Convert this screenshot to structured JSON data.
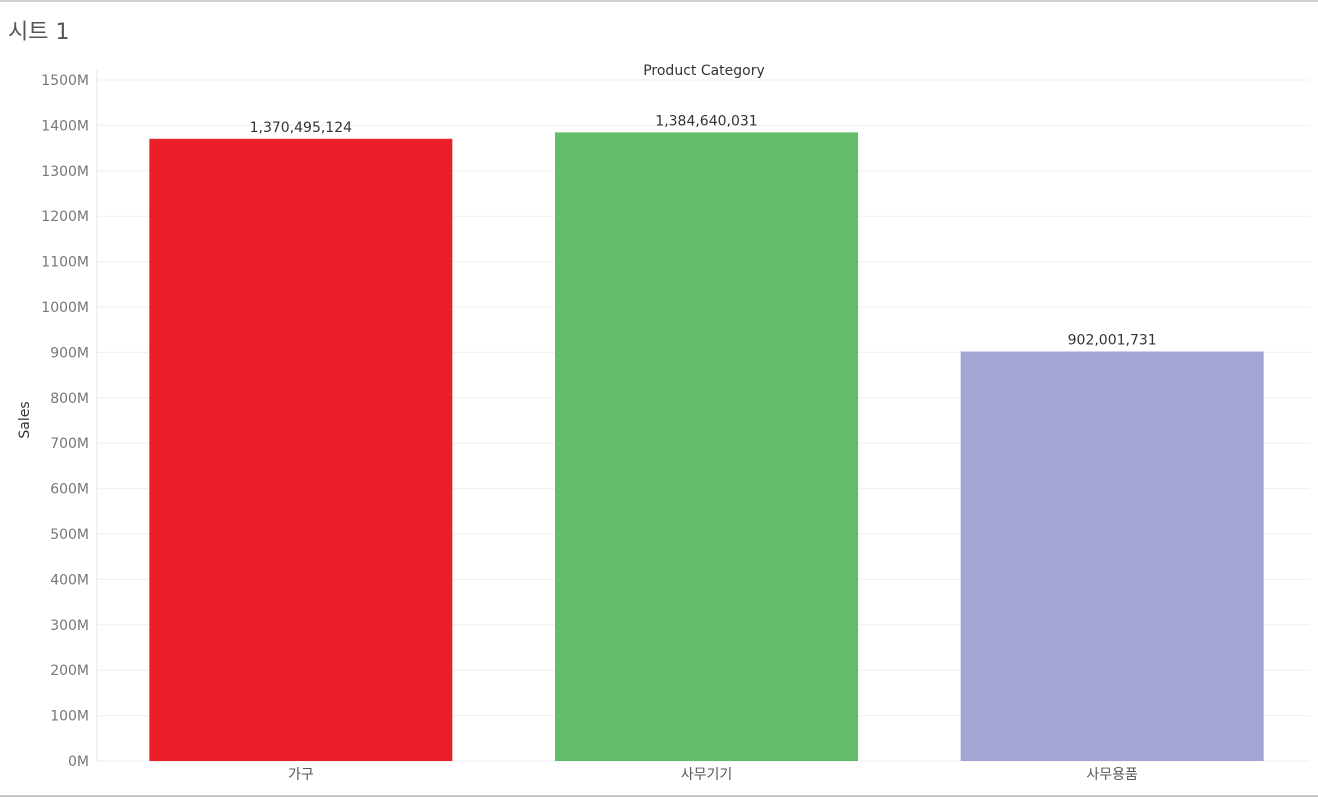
{
  "sheet": {
    "title": "시트 1"
  },
  "chart_data": {
    "type": "bar",
    "title": "Product Category",
    "xlabel": "",
    "ylabel": "Sales",
    "categories": [
      "가구",
      "사무기기",
      "사무용품"
    ],
    "values": [
      1370495124,
      1384640031,
      902001731
    ],
    "value_labels": [
      "1,370,495,124",
      "1,384,640,031",
      "902,001,731"
    ],
    "colors": [
      "#eb1f2a",
      "#62bc69",
      "#a5a5d5"
    ],
    "ylim": [
      0,
      1500000000
    ],
    "yticks": [
      0,
      100000000,
      200000000,
      300000000,
      400000000,
      500000000,
      600000000,
      700000000,
      800000000,
      900000000,
      1000000000,
      1100000000,
      1200000000,
      1300000000,
      1400000000,
      1500000000
    ],
    "ytick_labels": [
      "0M",
      "100M",
      "200M",
      "300M",
      "400M",
      "500M",
      "600M",
      "700M",
      "800M",
      "900M",
      "1000M",
      "1100M",
      "1200M",
      "1300M",
      "1400M",
      "1500M"
    ],
    "grid": true,
    "legend": "none"
  }
}
